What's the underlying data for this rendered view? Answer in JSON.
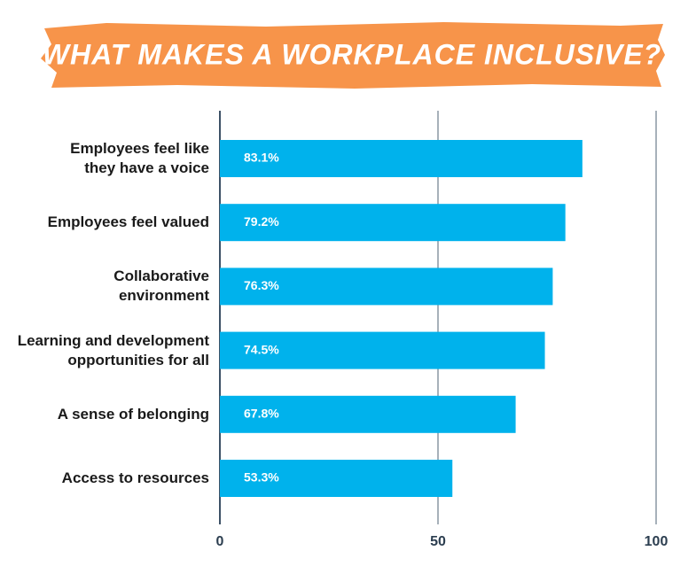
{
  "chart_data": {
    "type": "bar",
    "orientation": "horizontal",
    "title": "WHAT MAKES A WORKPLACE INCLUSIVE?",
    "categories": [
      "Employees feel like\nthey have a voice",
      "Employees feel valued",
      "Collaborative\nenvironment",
      "Learning and development\nopportunities for all",
      "A sense of belonging",
      "Access to resources"
    ],
    "values": [
      83.1,
      79.2,
      76.3,
      74.5,
      67.8,
      53.3
    ],
    "value_labels": [
      "83.1%",
      "79.2%",
      "76.3%",
      "74.5%",
      "67.8%",
      "53.3%"
    ],
    "color": "#00b2ec",
    "xlim": [
      0,
      100
    ],
    "xticks": [
      0,
      50,
      100
    ],
    "grid": true
  }
}
